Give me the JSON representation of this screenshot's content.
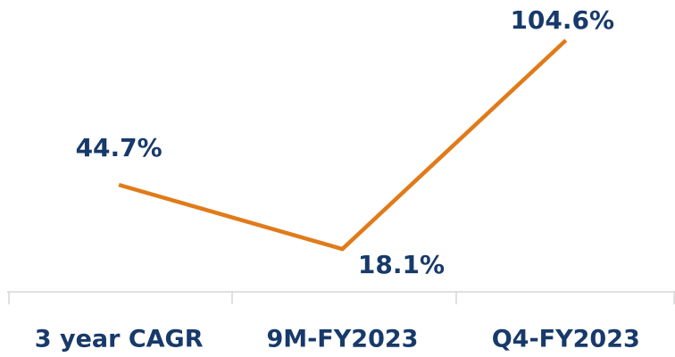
{
  "chart_data": {
    "type": "line",
    "categories": [
      "3 year CAGR",
      "9M-FY2023",
      "Q4-FY2023"
    ],
    "series": [
      {
        "color": "#e07b1a",
        "values": [
          44.7,
          18.1,
          104.6
        ],
        "value_labels": [
          "44.7%",
          "18.1%",
          "104.6%"
        ]
      }
    ]
  }
}
